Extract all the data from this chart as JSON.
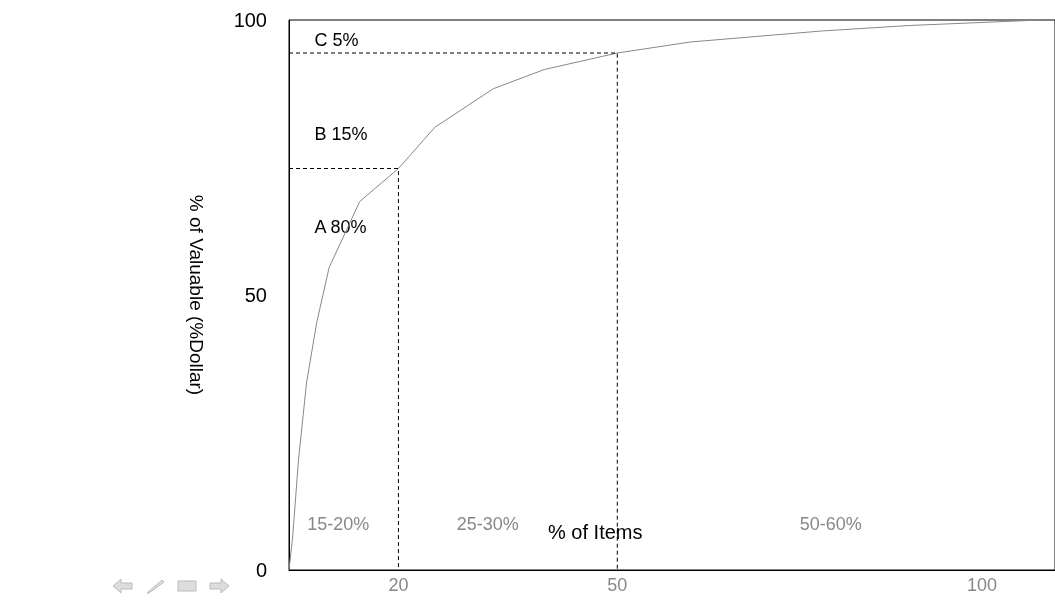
{
  "chart_data": {
    "type": "line",
    "xlabel": "% of Items",
    "ylabel": "% of Valuable (%Dollar)",
    "xlim": [
      5,
      110
    ],
    "xticks": [
      20,
      50,
      100
    ],
    "ylim": [
      0,
      100
    ],
    "yticks": [
      0,
      50,
      100
    ],
    "marker": "none",
    "annotations": [
      "C 5%",
      "B 15%",
      "A 80%",
      "15-20%",
      "25-30%",
      "50-60%"
    ],
    "series": [
      {
        "color": "#888888",
        "line_style": "solid",
        "x": [
          5,
          5.5,
          6.3,
          7.4,
          8.8,
          10.5,
          14.7,
          20,
          25,
          33,
          40,
          50,
          60,
          78,
          90,
          108
        ],
        "values": [
          0,
          6,
          20,
          34,
          45,
          55,
          67,
          73,
          80.5,
          87.5,
          91,
          94,
          96,
          98,
          99,
          100
        ]
      },
      {
        "color": "#000000",
        "line_style": "dashed",
        "x": [
          5,
          20,
          20
        ],
        "values": [
          73,
          73,
          0
        ]
      },
      {
        "color": "#000000",
        "line_style": "dashed",
        "x": [
          5,
          50,
          50
        ],
        "values": [
          94,
          94,
          0
        ]
      }
    ]
  }
}
